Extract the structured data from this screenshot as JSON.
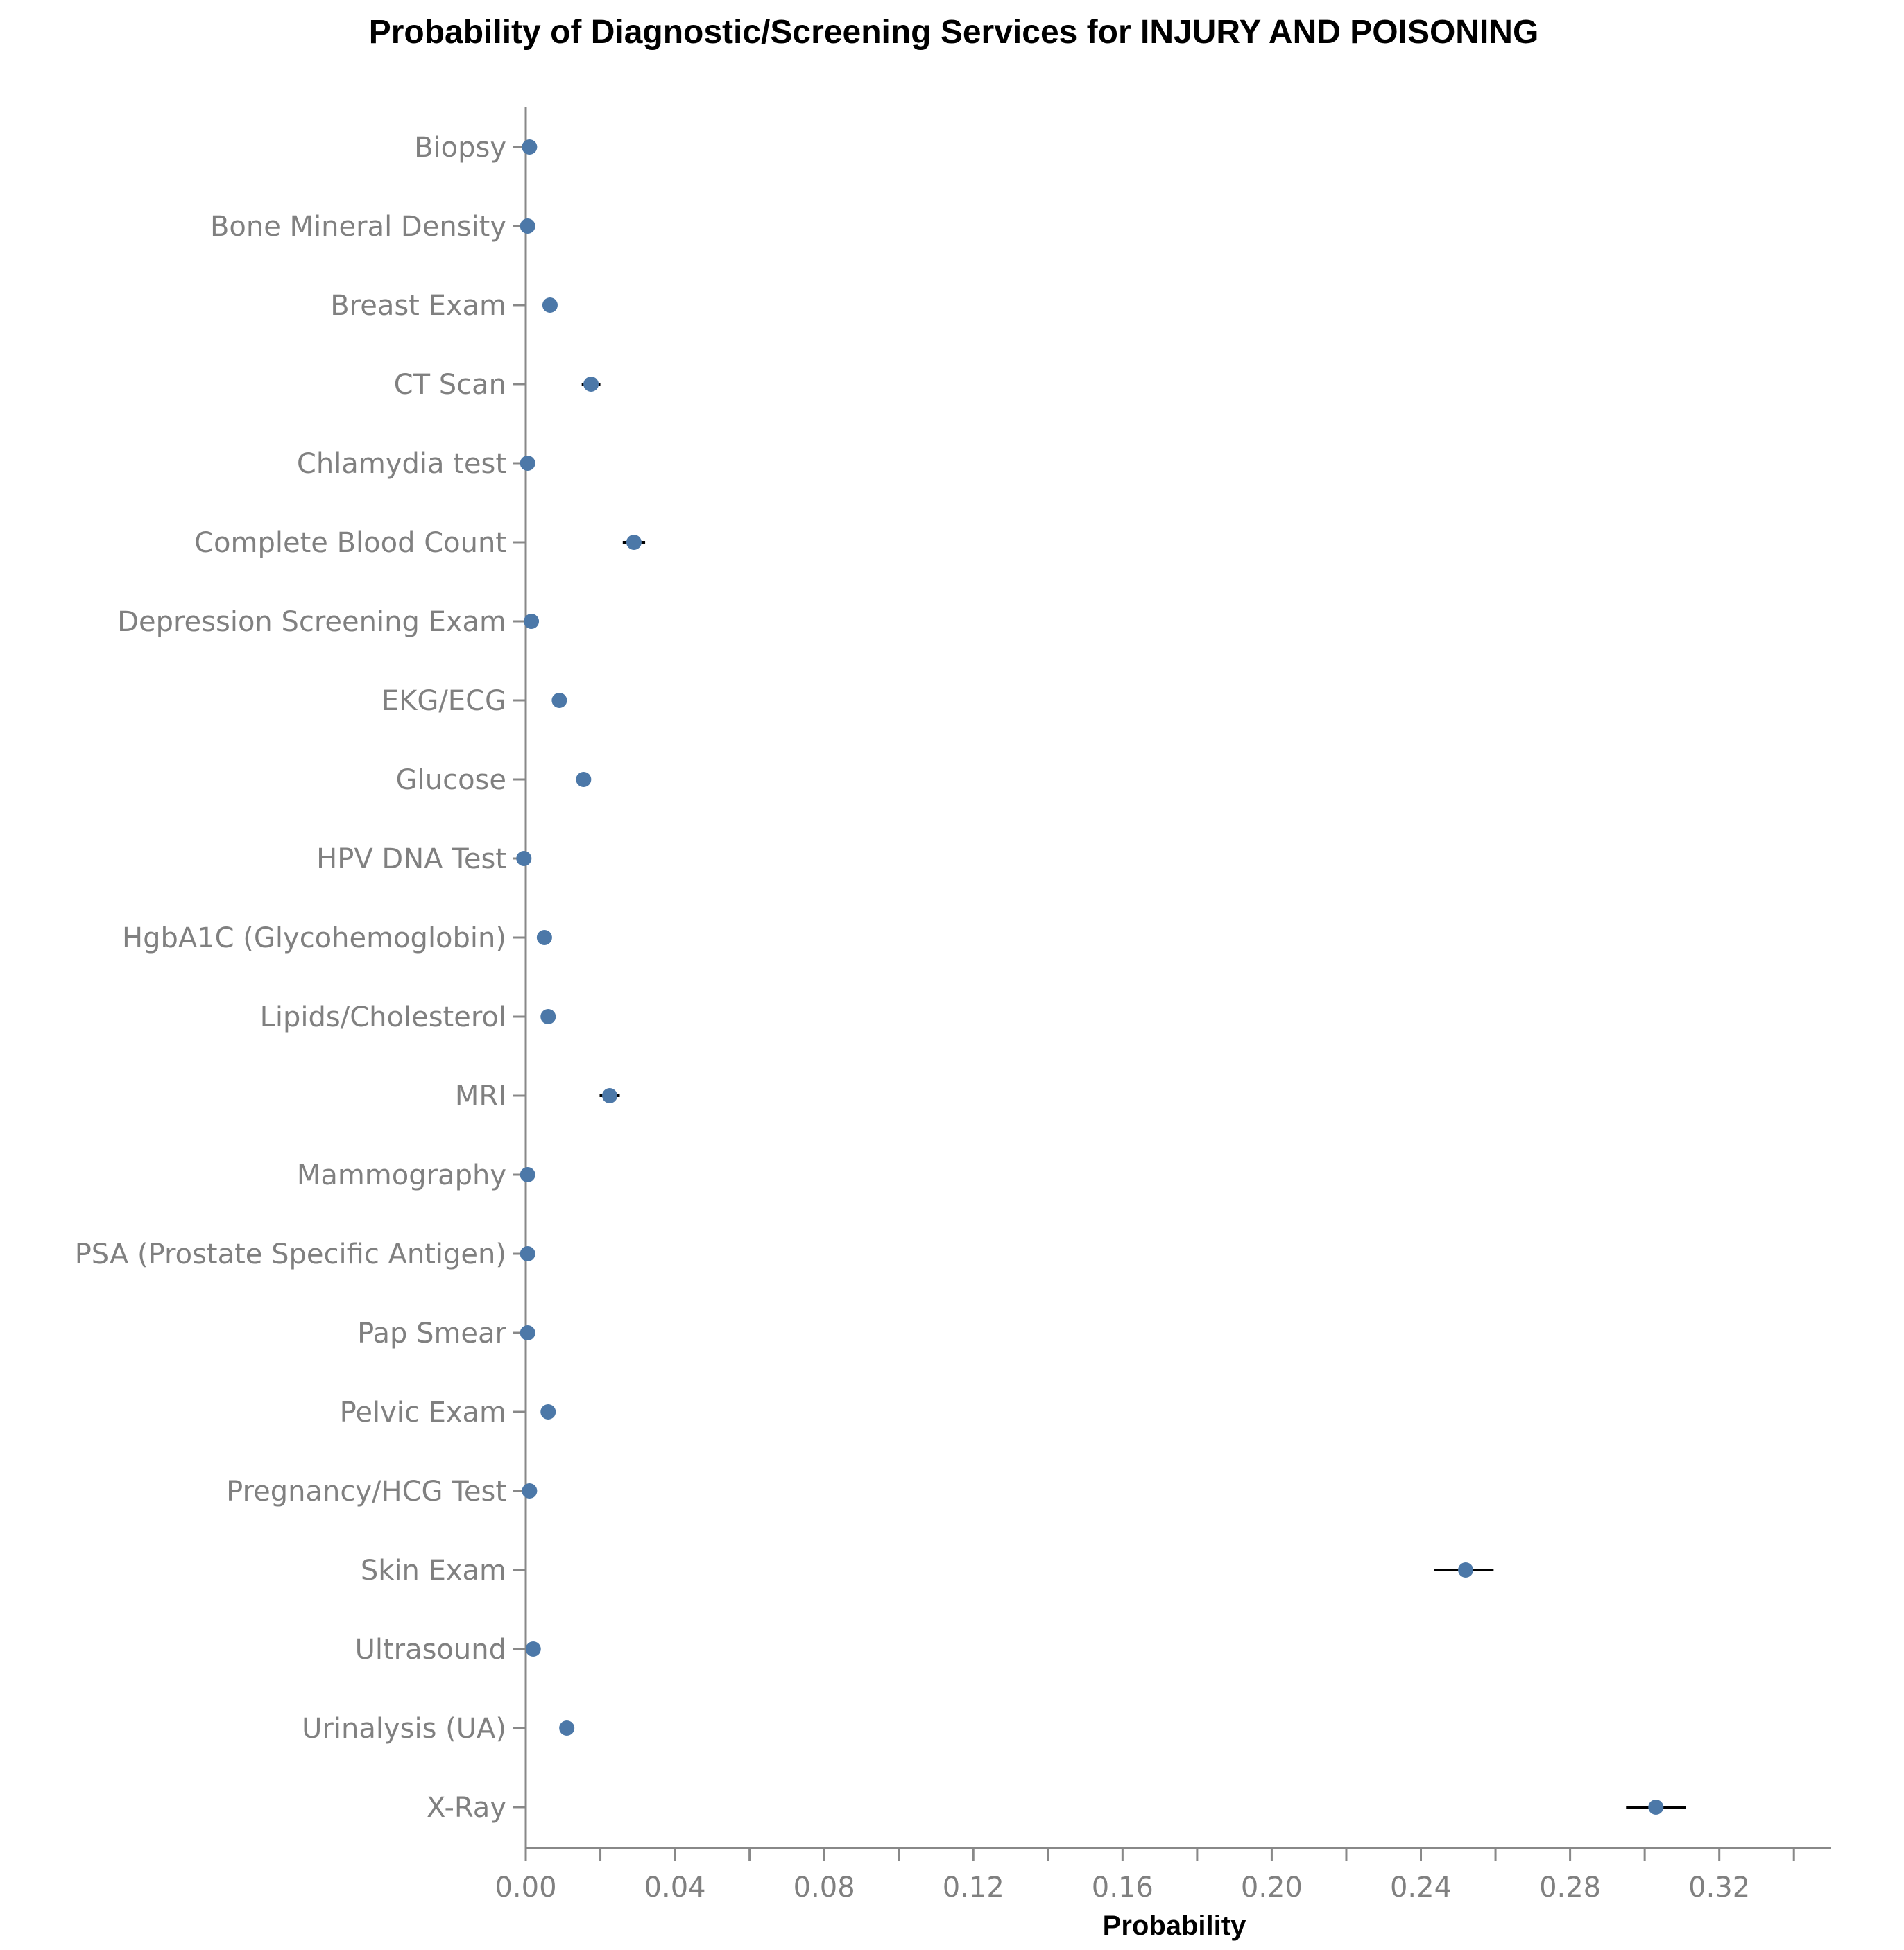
{
  "chart_data": {
    "type": "scatter",
    "title": "Probability of Diagnostic/Screening Services for INJURY AND POISONING",
    "xlabel": "Probability",
    "ylabel": "",
    "xlim": [
      0,
      0.35
    ],
    "x_tick_step": 0.02,
    "x_tick_labels": [
      "0.00",
      "0.04",
      "0.08",
      "0.12",
      "0.16",
      "0.20",
      "0.24",
      "0.28",
      "0.32"
    ],
    "grid": false,
    "point_color": "#4c78a8",
    "error_bar_color": "#000000",
    "categories": [
      "Biopsy",
      "Bone Mineral Density",
      "Breast Exam",
      "CT Scan",
      "Chlamydia test",
      "Complete Blood Count",
      "Depression Screening Exam",
      "EKG/ECG",
      "Glucose",
      "HPV DNA Test",
      "HgbA1C (Glycohemoglobin)",
      "Lipids/Cholesterol",
      "MRI",
      "Mammography",
      "PSA (Prostate Specific Antigen)",
      "Pap Smear",
      "Pelvic Exam",
      "Pregnancy/HCG Test",
      "Skin Exam",
      "Ultrasound",
      "Urinalysis (UA)",
      "X-Ray"
    ],
    "values": [
      0.001,
      0.0005,
      0.0065,
      0.0175,
      0.0005,
      0.029,
      0.0015,
      0.009,
      0.0155,
      -0.0005,
      0.005,
      0.006,
      0.0225,
      0.0005,
      0.0005,
      0.0005,
      0.006,
      0.001,
      0.252,
      0.002,
      0.011,
      0.303
    ],
    "lower": [
      0.0008,
      0.0003,
      0.006,
      0.015,
      0.0003,
      0.026,
      0.0012,
      0.0085,
      0.0145,
      -0.0007,
      0.0045,
      0.0055,
      0.0198,
      0.0003,
      0.0003,
      0.0003,
      0.0055,
      0.0008,
      0.2435,
      0.0017,
      0.0105,
      0.295
    ],
    "upper": [
      0.0012,
      0.0007,
      0.007,
      0.02,
      0.0007,
      0.032,
      0.0018,
      0.0095,
      0.0165,
      -0.0003,
      0.0055,
      0.0065,
      0.0252,
      0.0007,
      0.0007,
      0.0007,
      0.0065,
      0.0012,
      0.2595,
      0.0023,
      0.0115,
      0.311
    ]
  }
}
